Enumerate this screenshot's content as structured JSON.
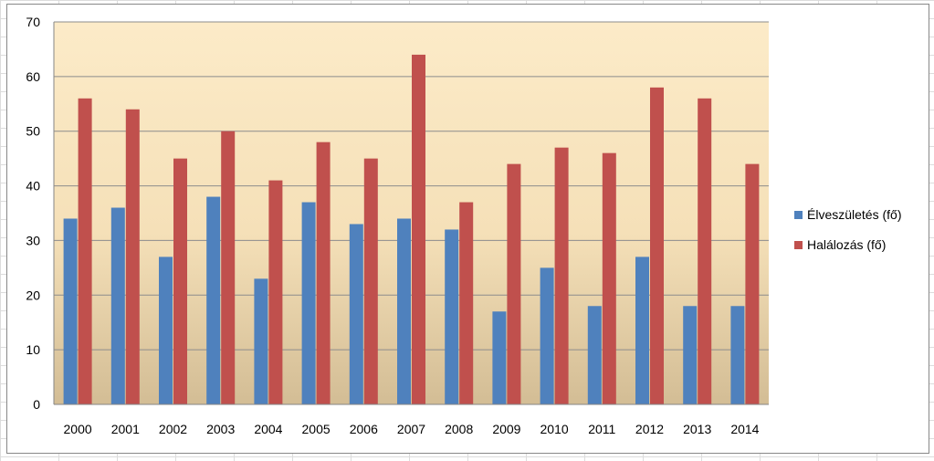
{
  "chart_data": {
    "type": "bar",
    "categories": [
      "2000",
      "2001",
      "2002",
      "2003",
      "2004",
      "2005",
      "2006",
      "2007",
      "2008",
      "2009",
      "2010",
      "2011",
      "2012",
      "2013",
      "2014"
    ],
    "series": [
      {
        "name": "Élveszületés (fő)",
        "color": "#4f81bd",
        "values": [
          34,
          36,
          27,
          38,
          23,
          37,
          33,
          34,
          32,
          17,
          25,
          18,
          27,
          18,
          18
        ]
      },
      {
        "name": "Halálozás (fő)",
        "color": "#c0504d",
        "values": [
          56,
          54,
          45,
          50,
          41,
          48,
          45,
          64,
          37,
          44,
          47,
          46,
          58,
          56,
          44
        ]
      }
    ],
    "ylim": [
      0,
      70
    ],
    "yticks": [
      "0",
      "10",
      "20",
      "30",
      "40",
      "50",
      "60",
      "70"
    ],
    "grid": true,
    "legend_position": "right",
    "plot_background": [
      "#fcebc8",
      "#d3bd95"
    ]
  }
}
